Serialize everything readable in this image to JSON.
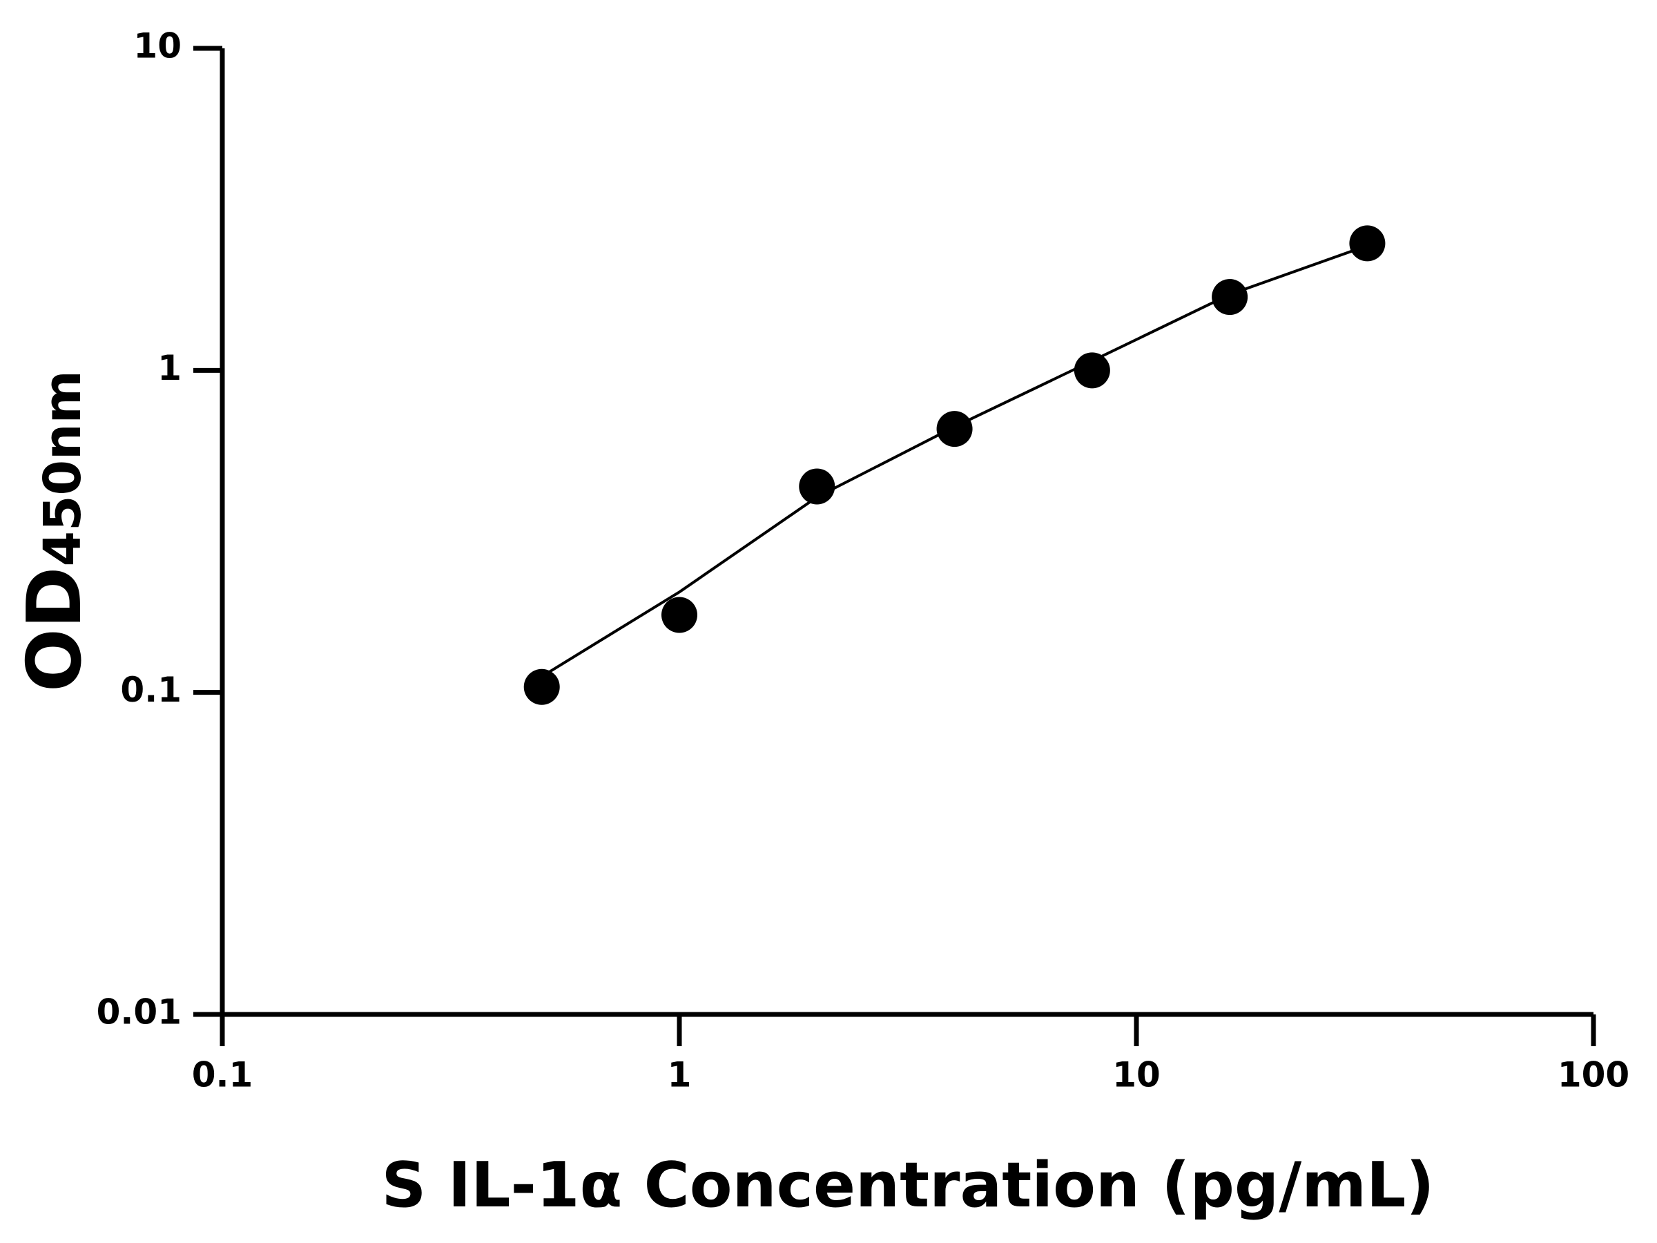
{
  "chart_data": {
    "type": "scatter",
    "xlabel": "S IL-1α Concentration (pg/mL)",
    "ylabel": "OD",
    "ylabel_subscript": "450nm",
    "x": [
      0.5,
      1,
      2,
      4,
      8,
      16,
      32
    ],
    "series": [
      {
        "type": "scatter",
        "color": "#000000",
        "values": [
          0.104,
          0.174,
          0.436,
          0.658,
          1.0,
          1.69,
          2.48
        ]
      },
      {
        "type": "line",
        "color": "#000000",
        "values": [
          0.112,
          0.205,
          0.404,
          0.668,
          1.07,
          1.72,
          2.44
        ]
      }
    ],
    "xscale": "log",
    "yscale": "log",
    "xlim": [
      0.1,
      100
    ],
    "ylim": [
      0.01,
      10
    ],
    "xticks": [
      0.1,
      1,
      10,
      100
    ],
    "yticks": [
      0.01,
      0.1,
      1,
      10
    ],
    "grid": false
  }
}
